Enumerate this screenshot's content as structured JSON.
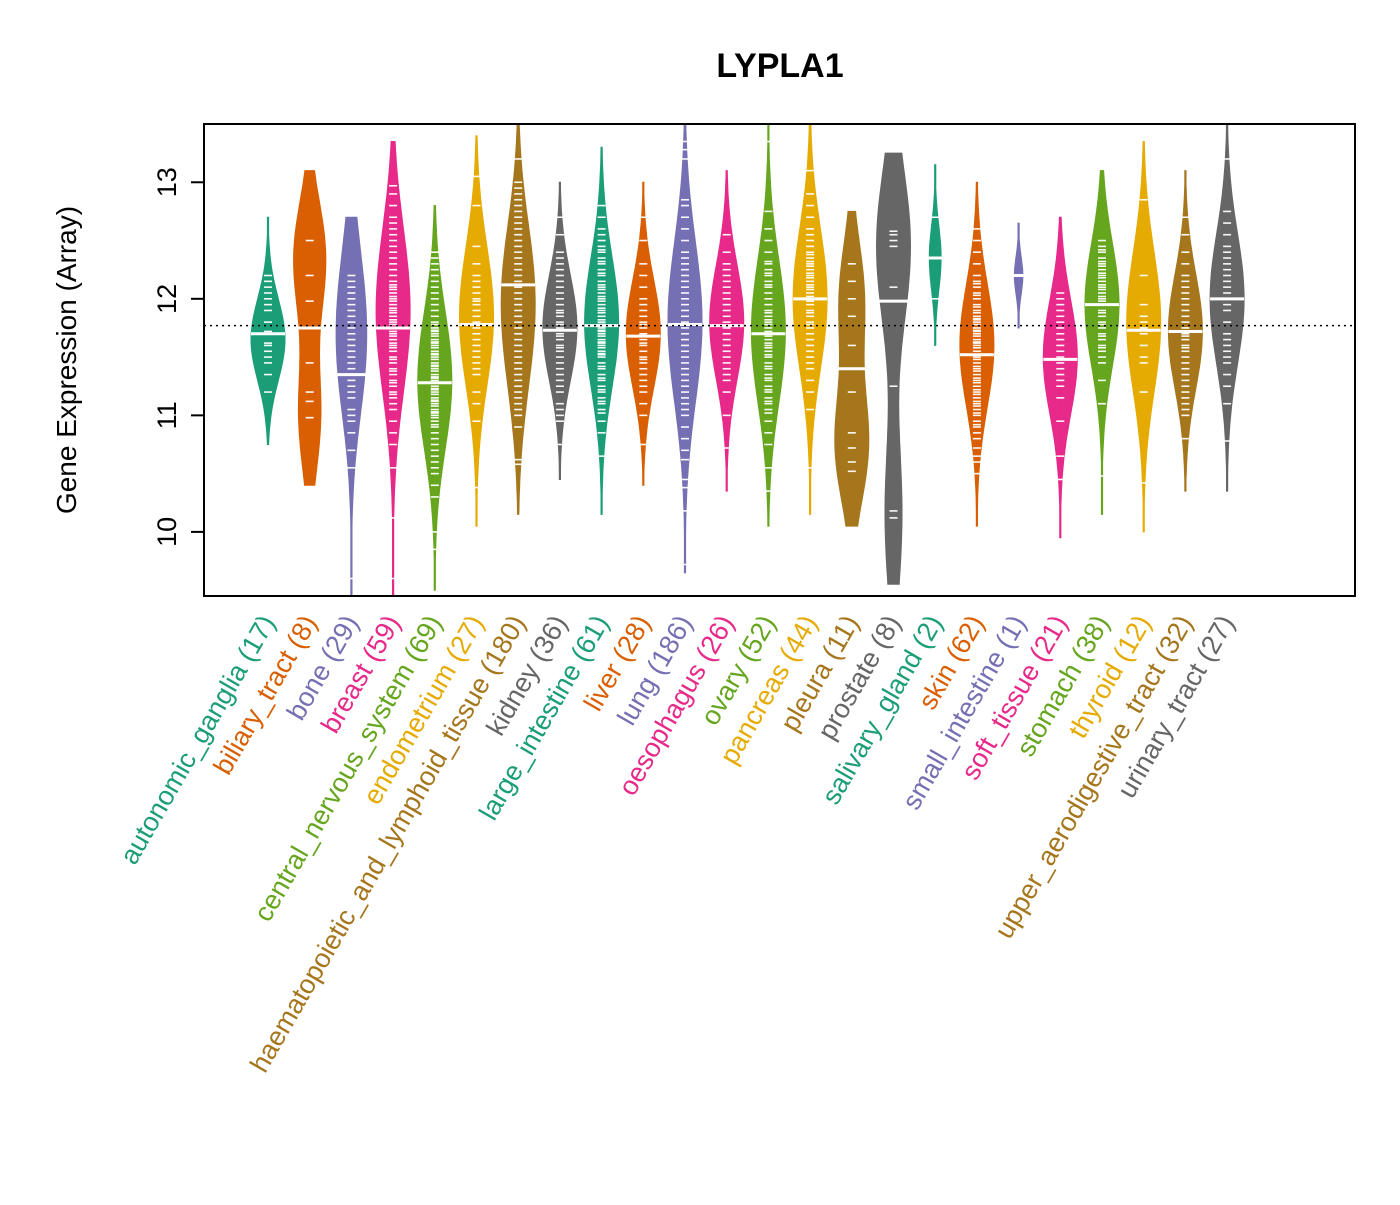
{
  "chart_data": {
    "type": "violin",
    "title": "LYPLA1",
    "ylabel": "Gene Expression (Array)",
    "xlabel": "",
    "ylim": [
      9.45,
      13.5
    ],
    "yticks": [
      10,
      11,
      12,
      13
    ],
    "reference_line": 11.77,
    "grid": false,
    "categories": [
      {
        "label": "autonomic_ganglia (17)",
        "color": "#1b9e77",
        "min": 10.75,
        "max": 12.7,
        "median": 11.7,
        "peaks": [
          [
            11.65,
            1.0
          ]
        ],
        "points": [
          11.2,
          11.35,
          11.45,
          11.5,
          11.55,
          11.62,
          11.7,
          11.72,
          11.8,
          11.9,
          11.95,
          12.0,
          12.05,
          12.1,
          12.15,
          12.2,
          11.6
        ]
      },
      {
        "label": "biliary_tract (8)",
        "color": "#d95f02",
        "min": 10.4,
        "max": 13.1,
        "median": 11.75,
        "peaks": [
          [
            11.0,
            0.65
          ],
          [
            12.35,
            0.95
          ]
        ],
        "points": [
          10.98,
          11.12,
          11.2,
          11.45,
          11.75,
          11.98,
          12.2,
          12.5
        ]
      },
      {
        "label": "bone (29)",
        "color": "#7570b3",
        "min": 9.45,
        "max": 12.7,
        "median": 11.35,
        "peaks": [
          [
            11.45,
            0.9
          ],
          [
            12.1,
            0.65
          ]
        ],
        "points": [
          9.6,
          10.55,
          10.7,
          10.85,
          10.95,
          11.05,
          11.15,
          11.25,
          11.3,
          11.35,
          11.4,
          11.45,
          11.5,
          11.55,
          11.6,
          11.65,
          11.7,
          11.75,
          11.8,
          11.85,
          11.9,
          11.95,
          12.0,
          12.05,
          12.1,
          12.15,
          12.2,
          11.0,
          11.2
        ]
      },
      {
        "label": "breast (59)",
        "color": "#e7298a",
        "min": 9.45,
        "max": 13.35,
        "median": 11.75,
        "peaks": [
          [
            11.9,
            1.0
          ]
        ],
        "points": [
          9.6,
          10.12,
          10.55,
          10.75,
          10.85,
          10.95,
          11.05,
          11.1,
          11.15,
          11.2,
          11.25,
          11.3,
          11.35,
          11.4,
          11.45,
          11.5,
          11.55,
          11.6,
          11.62,
          11.65,
          11.7,
          11.72,
          11.75,
          11.78,
          11.8,
          11.82,
          11.85,
          11.88,
          11.9,
          11.92,
          11.95,
          11.98,
          12.0,
          12.02,
          12.05,
          12.08,
          12.1,
          12.12,
          12.15,
          12.2,
          12.25,
          12.3,
          12.35,
          12.4,
          12.45,
          12.5,
          12.55,
          12.6,
          12.65,
          12.7,
          12.8,
          12.9,
          12.97,
          11.68,
          11.58,
          11.48,
          11.38,
          11.28,
          11.18
        ]
      },
      {
        "label": "central_nervous_system (69)",
        "color": "#66a61e",
        "min": 9.5,
        "max": 12.8,
        "median": 11.28,
        "peaks": [
          [
            11.3,
            1.0
          ]
        ],
        "points": [
          9.85,
          10.0,
          10.3,
          10.4,
          10.5,
          10.55,
          10.6,
          10.65,
          10.7,
          10.75,
          10.8,
          10.85,
          10.9,
          10.92,
          10.95,
          10.98,
          11.0,
          11.02,
          11.05,
          11.08,
          11.1,
          11.12,
          11.15,
          11.18,
          11.2,
          11.22,
          11.25,
          11.28,
          11.3,
          11.32,
          11.35,
          11.38,
          11.4,
          11.42,
          11.45,
          11.48,
          11.5,
          11.52,
          11.55,
          11.58,
          11.6,
          11.62,
          11.65,
          11.68,
          11.7,
          11.72,
          11.75,
          11.78,
          11.8,
          11.85,
          11.9,
          11.95,
          12.0,
          12.05,
          12.1,
          12.15,
          12.2,
          12.25,
          12.3,
          12.35,
          12.4,
          11.03,
          11.13,
          11.23,
          11.33,
          11.43,
          11.53,
          11.63,
          11.73
        ]
      },
      {
        "label": "endometrium (27)",
        "color": "#e6ab02",
        "min": 10.05,
        "max": 13.4,
        "median": 11.78,
        "peaks": [
          [
            11.85,
            1.0
          ]
        ],
        "points": [
          10.38,
          10.95,
          11.1,
          11.2,
          11.35,
          11.45,
          11.5,
          11.55,
          11.6,
          11.65,
          11.7,
          11.75,
          11.8,
          11.85,
          11.9,
          11.95,
          12.0,
          12.05,
          12.1,
          12.15,
          12.2,
          12.3,
          12.45,
          12.8,
          13.05,
          11.4,
          11.98
        ]
      },
      {
        "label": "haematopoietic_and_lymphoid_tissue (180)",
        "color": "#a6761d",
        "min": 10.15,
        "max": 13.5,
        "median": 12.12,
        "peaks": [
          [
            12.15,
            1.0
          ],
          [
            11.5,
            0.55
          ]
        ],
        "points": [
          10.58,
          10.62,
          10.9,
          11.0,
          11.05,
          11.1,
          11.15,
          11.2,
          11.25,
          11.3,
          11.35,
          11.4,
          11.45,
          11.5,
          11.55,
          11.6,
          11.65,
          11.7,
          11.75,
          11.8,
          11.85,
          11.9,
          11.95,
          12.0,
          12.05,
          12.1,
          12.15,
          12.2,
          12.25,
          12.3,
          12.35,
          12.4,
          12.45,
          12.5,
          12.55,
          12.6,
          12.65,
          12.7,
          12.75,
          12.8,
          12.85,
          12.9,
          12.95,
          13.0,
          13.2
        ]
      },
      {
        "label": "kidney (36)",
        "color": "#666666",
        "min": 10.45,
        "max": 13.0,
        "median": 11.73,
        "peaks": [
          [
            11.75,
            1.0
          ]
        ],
        "points": [
          10.75,
          10.95,
          11.0,
          11.1,
          11.2,
          11.3,
          11.35,
          11.4,
          11.45,
          11.5,
          11.55,
          11.6,
          11.65,
          11.7,
          11.75,
          11.8,
          11.85,
          11.9,
          11.95,
          12.0,
          12.05,
          12.1,
          12.15,
          12.2,
          12.3,
          12.4,
          12.55,
          12.7,
          11.25,
          11.05,
          12.25,
          12.35,
          11.58,
          11.68,
          11.78,
          11.88
        ]
      },
      {
        "label": "large_intestine (61)",
        "color": "#1b9e77",
        "min": 10.15,
        "max": 13.3,
        "median": 11.77,
        "peaks": [
          [
            11.8,
            1.0
          ]
        ],
        "points": [
          10.65,
          10.85,
          10.95,
          11.05,
          11.1,
          11.15,
          11.2,
          11.25,
          11.3,
          11.35,
          11.4,
          11.45,
          11.5,
          11.52,
          11.55,
          11.58,
          11.6,
          11.62,
          11.65,
          11.68,
          11.7,
          11.72,
          11.75,
          11.78,
          11.8,
          11.82,
          11.85,
          11.88,
          11.9,
          11.92,
          11.95,
          11.98,
          12.0,
          12.02,
          12.05,
          12.08,
          12.1,
          12.15,
          12.2,
          12.25,
          12.3,
          12.35,
          12.4,
          12.45,
          12.5,
          12.55,
          12.6,
          12.7,
          12.8,
          11.42,
          11.32,
          11.22,
          11.12,
          11.02,
          12.12,
          12.22,
          12.32,
          12.42,
          11.73,
          11.63,
          11.53
        ]
      },
      {
        "label": "liver (28)",
        "color": "#d95f02",
        "min": 10.4,
        "max": 13.0,
        "median": 11.68,
        "peaks": [
          [
            11.7,
            1.0
          ]
        ],
        "points": [
          10.75,
          11.0,
          11.1,
          11.2,
          11.3,
          11.35,
          11.4,
          11.45,
          11.5,
          11.55,
          11.6,
          11.65,
          11.7,
          11.75,
          11.8,
          11.85,
          11.9,
          11.95,
          12.0,
          12.1,
          12.2,
          12.3,
          12.5,
          12.7,
          11.25,
          11.48,
          11.62,
          11.78
        ]
      },
      {
        "label": "lung (186)",
        "color": "#7570b3",
        "min": 9.65,
        "max": 13.5,
        "median": 11.78,
        "peaks": [
          [
            11.8,
            1.0
          ]
        ],
        "points": [
          9.72,
          10.18,
          10.38,
          10.45,
          10.62,
          10.7,
          10.8,
          10.9,
          11.0,
          11.05,
          11.1,
          11.15,
          11.2,
          11.25,
          11.3,
          11.35,
          11.4,
          11.45,
          11.5,
          11.55,
          11.6,
          11.65,
          11.7,
          11.75,
          11.8,
          11.85,
          11.9,
          11.95,
          12.0,
          12.05,
          12.1,
          12.15,
          12.2,
          12.25,
          12.3,
          12.35,
          12.4,
          12.5,
          12.6,
          12.7,
          12.8,
          12.85,
          13.2,
          13.28,
          13.35
        ]
      },
      {
        "label": "oesophagus (26)",
        "color": "#e7298a",
        "min": 10.35,
        "max": 13.1,
        "median": 11.77,
        "peaks": [
          [
            11.8,
            1.0
          ]
        ],
        "points": [
          10.72,
          11.0,
          11.2,
          11.3,
          11.4,
          11.5,
          11.55,
          11.6,
          11.65,
          11.7,
          11.75,
          11.8,
          11.85,
          11.9,
          11.95,
          12.0,
          12.05,
          12.1,
          12.2,
          12.3,
          12.4,
          12.55,
          11.35,
          11.45,
          12.15,
          12.25
        ]
      },
      {
        "label": "ovary (52)",
        "color": "#66a61e",
        "min": 10.05,
        "max": 13.5,
        "median": 11.7,
        "peaks": [
          [
            11.72,
            1.0
          ]
        ],
        "points": [
          10.35,
          10.55,
          10.75,
          10.85,
          10.95,
          11.05,
          11.1,
          11.15,
          11.2,
          11.25,
          11.3,
          11.35,
          11.4,
          11.45,
          11.5,
          11.52,
          11.55,
          11.58,
          11.6,
          11.62,
          11.65,
          11.68,
          11.7,
          11.72,
          11.75,
          11.78,
          11.8,
          11.82,
          11.85,
          11.88,
          11.9,
          11.95,
          12.0,
          12.05,
          12.1,
          12.15,
          12.2,
          12.25,
          12.3,
          12.4,
          12.5,
          12.6,
          12.75,
          13.35,
          11.42,
          11.32,
          11.22,
          11.12,
          11.02,
          12.12,
          12.22,
          12.32
        ]
      },
      {
        "label": "pancreas (44)",
        "color": "#e6ab02",
        "min": 10.15,
        "max": 13.5,
        "median": 12.0,
        "peaks": [
          [
            12.0,
            1.0
          ]
        ],
        "points": [
          10.55,
          11.05,
          11.2,
          11.3,
          11.4,
          11.45,
          11.5,
          11.55,
          11.6,
          11.65,
          11.7,
          11.75,
          11.8,
          11.85,
          11.9,
          11.95,
          12.0,
          12.02,
          12.05,
          12.08,
          12.1,
          12.12,
          12.15,
          12.18,
          12.2,
          12.22,
          12.25,
          12.28,
          12.3,
          12.32,
          12.35,
          12.38,
          12.4,
          12.45,
          12.5,
          12.55,
          12.6,
          12.7,
          12.8,
          12.9,
          13.1,
          11.98,
          11.88,
          11.78
        ]
      },
      {
        "label": "pleura (11)",
        "color": "#a6761d",
        "min": 10.05,
        "max": 12.75,
        "median": 11.4,
        "peaks": [
          [
            10.75,
            1.0
          ],
          [
            12.0,
            0.75
          ]
        ],
        "points": [
          10.52,
          10.6,
          10.72,
          10.85,
          11.2,
          11.4,
          11.6,
          11.85,
          12.0,
          12.15,
          12.3
        ]
      },
      {
        "label": "prostate (8)",
        "color": "#666666",
        "min": 9.55,
        "max": 13.25,
        "median": 11.98,
        "peaks": [
          [
            12.45,
            1.0
          ],
          [
            10.15,
            0.5
          ]
        ],
        "points": [
          10.12,
          10.18,
          11.25,
          12.1,
          12.45,
          12.5,
          12.55,
          12.58
        ]
      },
      {
        "label": "salivary_gland (2)",
        "color": "#1b9e77",
        "min": 11.6,
        "max": 13.15,
        "median": 12.35,
        "peaks": [
          [
            12.35,
            0.35
          ]
        ],
        "points": [
          12.0,
          12.7
        ]
      },
      {
        "label": "skin (62)",
        "color": "#d95f02",
        "min": 10.05,
        "max": 13.0,
        "median": 11.52,
        "peaks": [
          [
            11.6,
            1.0
          ]
        ],
        "points": [
          10.5,
          10.6,
          10.65,
          10.72,
          10.8,
          10.85,
          10.9,
          10.95,
          11.0,
          11.05,
          11.1,
          11.15,
          11.2,
          11.25,
          11.3,
          11.35,
          11.4,
          11.45,
          11.5,
          11.52,
          11.55,
          11.58,
          11.6,
          11.62,
          11.65,
          11.68,
          11.7,
          11.72,
          11.75,
          11.78,
          11.8,
          11.82,
          11.85,
          11.88,
          11.9,
          11.95,
          12.0,
          12.05,
          12.1,
          12.15,
          12.2,
          12.3,
          12.4,
          12.5,
          12.6,
          11.42,
          11.32,
          11.22,
          11.12,
          11.02,
          10.92,
          11.48,
          11.38,
          11.28,
          11.18,
          11.08,
          11.63,
          11.73,
          11.83,
          11.93,
          12.03,
          12.13
        ]
      },
      {
        "label": "small_intestine (1)",
        "color": "#7570b3",
        "min": 11.75,
        "max": 12.65,
        "median": 12.2,
        "peaks": [
          [
            12.2,
            0.25
          ]
        ],
        "points": [
          12.2
        ]
      },
      {
        "label": "soft_tissue (21)",
        "color": "#e7298a",
        "min": 9.95,
        "max": 12.7,
        "median": 11.48,
        "peaks": [
          [
            11.5,
            1.0
          ]
        ],
        "points": [
          10.45,
          10.65,
          10.95,
          11.15,
          11.25,
          11.35,
          11.45,
          11.5,
          11.55,
          11.6,
          11.65,
          11.7,
          11.75,
          11.8,
          11.85,
          11.9,
          11.95,
          12.0,
          12.05,
          11.4,
          11.3
        ]
      },
      {
        "label": "stomach (38)",
        "color": "#66a61e",
        "min": 10.15,
        "max": 13.1,
        "median": 11.95,
        "peaks": [
          [
            11.95,
            1.0
          ]
        ],
        "points": [
          10.48,
          11.1,
          11.3,
          11.45,
          11.55,
          11.6,
          11.65,
          11.7,
          11.75,
          11.8,
          11.85,
          11.9,
          11.95,
          12.0,
          12.05,
          12.1,
          12.15,
          12.2,
          12.25,
          12.3,
          12.35,
          12.4,
          12.45,
          12.5,
          11.88,
          11.78,
          11.68,
          12.08,
          12.18,
          12.28,
          11.58,
          11.98,
          12.02,
          12.12,
          12.22,
          12.32,
          12.42,
          11.5
        ]
      },
      {
        "label": "thyroid (12)",
        "color": "#e6ab02",
        "min": 10.0,
        "max": 13.35,
        "median": 11.73,
        "peaks": [
          [
            11.8,
            1.0
          ]
        ],
        "points": [
          10.42,
          11.2,
          11.45,
          11.6,
          11.7,
          11.75,
          11.8,
          11.85,
          11.95,
          12.2,
          12.85,
          11.5
        ]
      },
      {
        "label": "upper_aerodigestive_tract (32)",
        "color": "#a6761d",
        "min": 10.35,
        "max": 13.1,
        "median": 11.72,
        "peaks": [
          [
            11.72,
            1.0
          ]
        ],
        "points": [
          10.8,
          11.0,
          11.1,
          11.2,
          11.3,
          11.35,
          11.4,
          11.45,
          11.5,
          11.55,
          11.6,
          11.65,
          11.7,
          11.75,
          11.8,
          11.85,
          11.9,
          11.95,
          12.0,
          12.05,
          12.1,
          12.15,
          12.2,
          12.3,
          12.4,
          12.55,
          12.7,
          11.25,
          11.15,
          11.05,
          11.58,
          11.68
        ]
      },
      {
        "label": "urinary_tract (27)",
        "color": "#666666",
        "min": 10.35,
        "max": 13.5,
        "median": 12.0,
        "peaks": [
          [
            12.0,
            1.0
          ]
        ],
        "points": [
          10.78,
          11.1,
          11.25,
          11.35,
          11.45,
          11.5,
          11.55,
          11.6,
          11.7,
          11.8,
          11.9,
          11.95,
          12.0,
          12.05,
          12.1,
          12.15,
          12.2,
          12.25,
          12.3,
          12.35,
          12.4,
          12.45,
          12.55,
          12.65,
          12.75,
          13.2,
          11.65
        ]
      }
    ]
  }
}
